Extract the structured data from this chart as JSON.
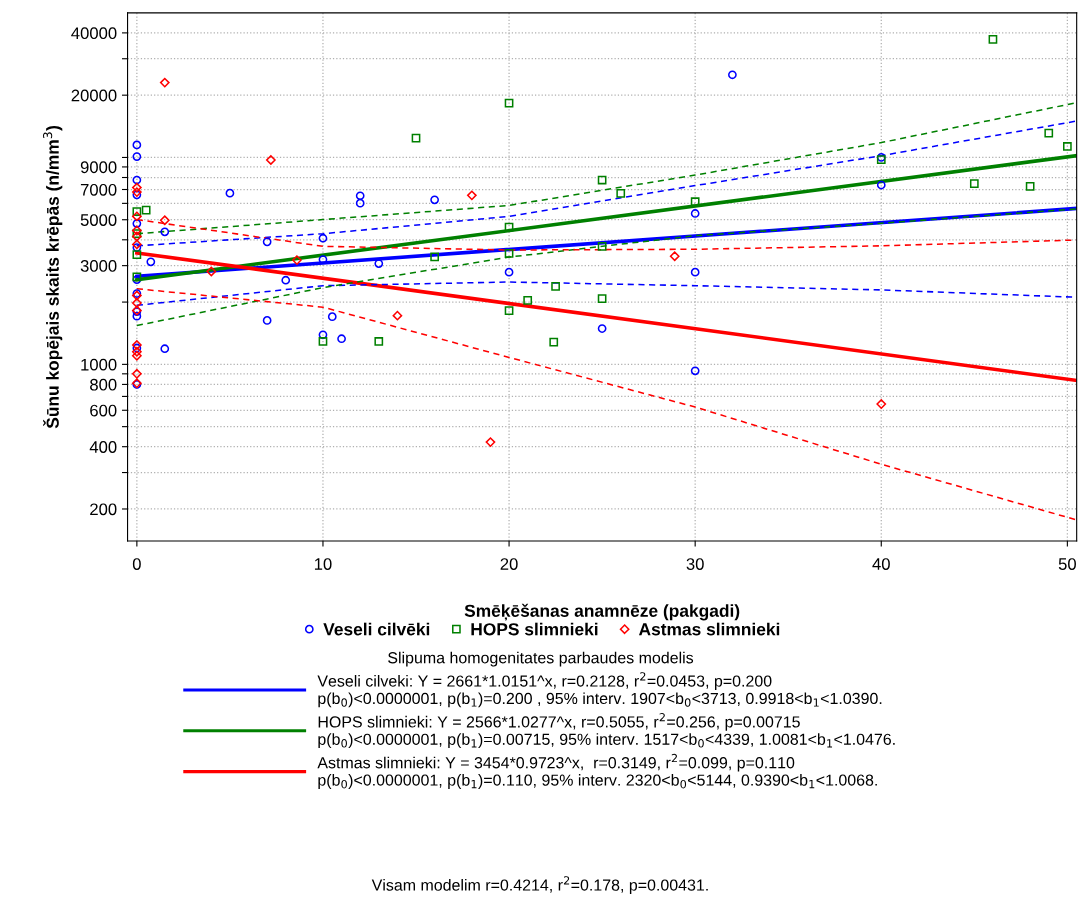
{
  "chart_data": {
    "type": "scatter",
    "xlabel": "Smēķēšanas anamnēze (pakgadi)",
    "ylabel": "Šūnu kopējais skaits krēpās (n/mm$^{3}$)",
    "legend_title": "Slipuma homogenitates parbaudes modelis",
    "annotations": [
      "Visam modelim r=0.4214, r$^{2}$=0.178, p=0.00431."
    ],
    "log": "y",
    "grid": true,
    "legend": "bottom",
    "xlim": [
      -0.5,
      50.5
    ],
    "xticks": [
      0,
      10,
      20,
      30,
      40,
      50
    ],
    "ylim": [
      140,
      50000
    ],
    "yticks": [
      200,
      {
        "value": 300,
        "label": null
      },
      400,
      {
        "value": 500,
        "label": null
      },
      600,
      {
        "value": 700,
        "label": null
      },
      800,
      {
        "value": 900,
        "label": null
      },
      1000,
      {
        "value": 2000,
        "label": null
      },
      3000,
      {
        "value": 4000,
        "label": null
      },
      5000,
      {
        "value": 6000,
        "label": null
      },
      7000,
      {
        "value": 8000,
        "label": null
      },
      9000,
      {
        "value": 10000,
        "label": null
      },
      20000,
      {
        "value": 30000,
        "label": null
      },
      40000
    ],
    "series": [
      {
        "type": "scatter",
        "name": "Veseli cilvēki",
        "color": "#0000ff",
        "marker": "circle",
        "x": [
          0,
          0,
          0,
          0,
          0,
          0,
          0,
          0,
          0,
          0,
          0,
          0,
          0.75,
          1.5,
          1.5,
          5,
          7,
          7,
          8,
          10,
          10,
          10,
          10.5,
          11,
          12,
          12,
          13,
          16,
          20,
          25,
          30,
          30,
          30,
          32,
          40,
          40
        ],
        "values": [
          11500,
          10100,
          7780,
          6600,
          4790,
          3670,
          2570,
          2200,
          1800,
          1710,
          1200,
          800,
          3130,
          4370,
          1190,
          6720,
          3910,
          1630,
          2550,
          4070,
          3210,
          1390,
          1700,
          1330,
          6530,
          6010,
          3070,
          6240,
          2790,
          1490,
          5360,
          2790,
          931,
          25100,
          10000,
          7360
        ]
      },
      {
        "type": "scatter",
        "name": "HOPS slimnieki",
        "color": "#008000",
        "marker": "square",
        "x": [
          0,
          0,
          0,
          0,
          0.5,
          10,
          13,
          15,
          16,
          20,
          20,
          20,
          20,
          21,
          22.5,
          22.4,
          25,
          25,
          25,
          26,
          30,
          40,
          45,
          46,
          48,
          49,
          50
        ],
        "values": [
          5480,
          4280,
          3390,
          2650,
          5570,
          1290,
          1290,
          12400,
          3310,
          18300,
          4610,
          3440,
          1820,
          2040,
          2380,
          1280,
          7780,
          3720,
          2080,
          6710,
          6110,
          9770,
          7480,
          37200,
          7250,
          13100,
          11300
        ]
      },
      {
        "type": "scatter",
        "name": "Astmas slimnieki",
        "color": "#ff0000",
        "marker": "diamond",
        "x": [
          0,
          0,
          0,
          0,
          0,
          0,
          0,
          0,
          0,
          0,
          0,
          0,
          0,
          0,
          1.5,
          1.5,
          4,
          7.2,
          8.6,
          14,
          18,
          19,
          28.9,
          40
        ],
        "values": [
          7150,
          6800,
          5190,
          4440,
          4150,
          3800,
          2150,
          1980,
          1820,
          1240,
          1150,
          900,
          810,
          1100,
          23000,
          4970,
          2810,
          9720,
          3190,
          1720,
          6560,
          421,
          3330,
          643
        ]
      },
      {
        "type": "line",
        "name": "Veseli cilveki: Y = 2661*1.0151^x, r=0.2128, r$^{2}$=0.0453, p=0.200\np(b$_{0}$)<0.0000001, p(b$_{1}$)=0.200 , 95% interv. 1907<b$_{0}$<3713, 0.9918<b$_{1}$<1.0390.",
        "color": "#0000ff",
        "line_style": "solid",
        "x": [
          0,
          50.5
        ],
        "values": [
          2661,
          5670
        ]
      },
      {
        "type": "line",
        "name": "HOPS slimnieki: Y = 2566*1.0277^x, r=0.5055, r$^{2}$=0.256, p=0.00715\np(b$_{0}$)<0.0000001, p(b$_{1}$)=0.00715, 95% interv. 1517<b$_{0}$<4339, 1.0081<b$_{1}$<1.0476.",
        "color": "#008000",
        "line_style": "solid",
        "x": [
          0,
          50.5
        ],
        "values": [
          2566,
          10200
        ]
      },
      {
        "type": "line",
        "name": "Astmas slimnieki: Y = 3454*0.9723^x,  r=0.3149, r$^{2}$=0.099, p=0.110\np(b$_{0}$)<0.0000001, p(b$_{1}$)=0.110, 95% interv. 2320<b$_{0}$<5144, 0.9390<b$_{1}$<1.0068.",
        "color": "#ff0000",
        "line_style": "solid",
        "x": [
          0,
          50.5
        ],
        "values": [
          3454,
          836
        ]
      },
      {
        "type": "line",
        "color": "#0000ff",
        "line_style": "dashed",
        "x": [
          0,
          10,
          20,
          30,
          40,
          50.5
        ],
        "values": [
          3740,
          4280,
          5190,
          7310,
          10200,
          15000
        ]
      },
      {
        "type": "line",
        "color": "#0000ff",
        "line_style": "dashed",
        "x": [
          0,
          10,
          20,
          30,
          40,
          50.5
        ],
        "values": [
          1930,
          2400,
          2500,
          2400,
          2290,
          2110
        ]
      },
      {
        "type": "line",
        "color": "#008000",
        "line_style": "dashed",
        "x": [
          0,
          10,
          20,
          30,
          40,
          50.5
        ],
        "values": [
          4280,
          5010,
          5860,
          8220,
          11800,
          18400
        ]
      },
      {
        "type": "line",
        "color": "#008000",
        "line_style": "dashed",
        "x": [
          0,
          10,
          20,
          30,
          40,
          50.5
        ],
        "values": [
          1540,
          2350,
          3300,
          4190,
          4810,
          5640
        ]
      },
      {
        "type": "line",
        "color": "#ff0000",
        "line_style": "dashed",
        "x": [
          0,
          10,
          20,
          30,
          40,
          50.5
        ],
        "values": [
          5010,
          3720,
          3570,
          3600,
          3740,
          3990
        ]
      },
      {
        "type": "line",
        "color": "#ff0000",
        "line_style": "dashed",
        "x": [
          0,
          10,
          20,
          30,
          40,
          50.5
        ],
        "values": [
          2320,
          1890,
          1080,
          622,
          329,
          177
        ]
      }
    ]
  }
}
